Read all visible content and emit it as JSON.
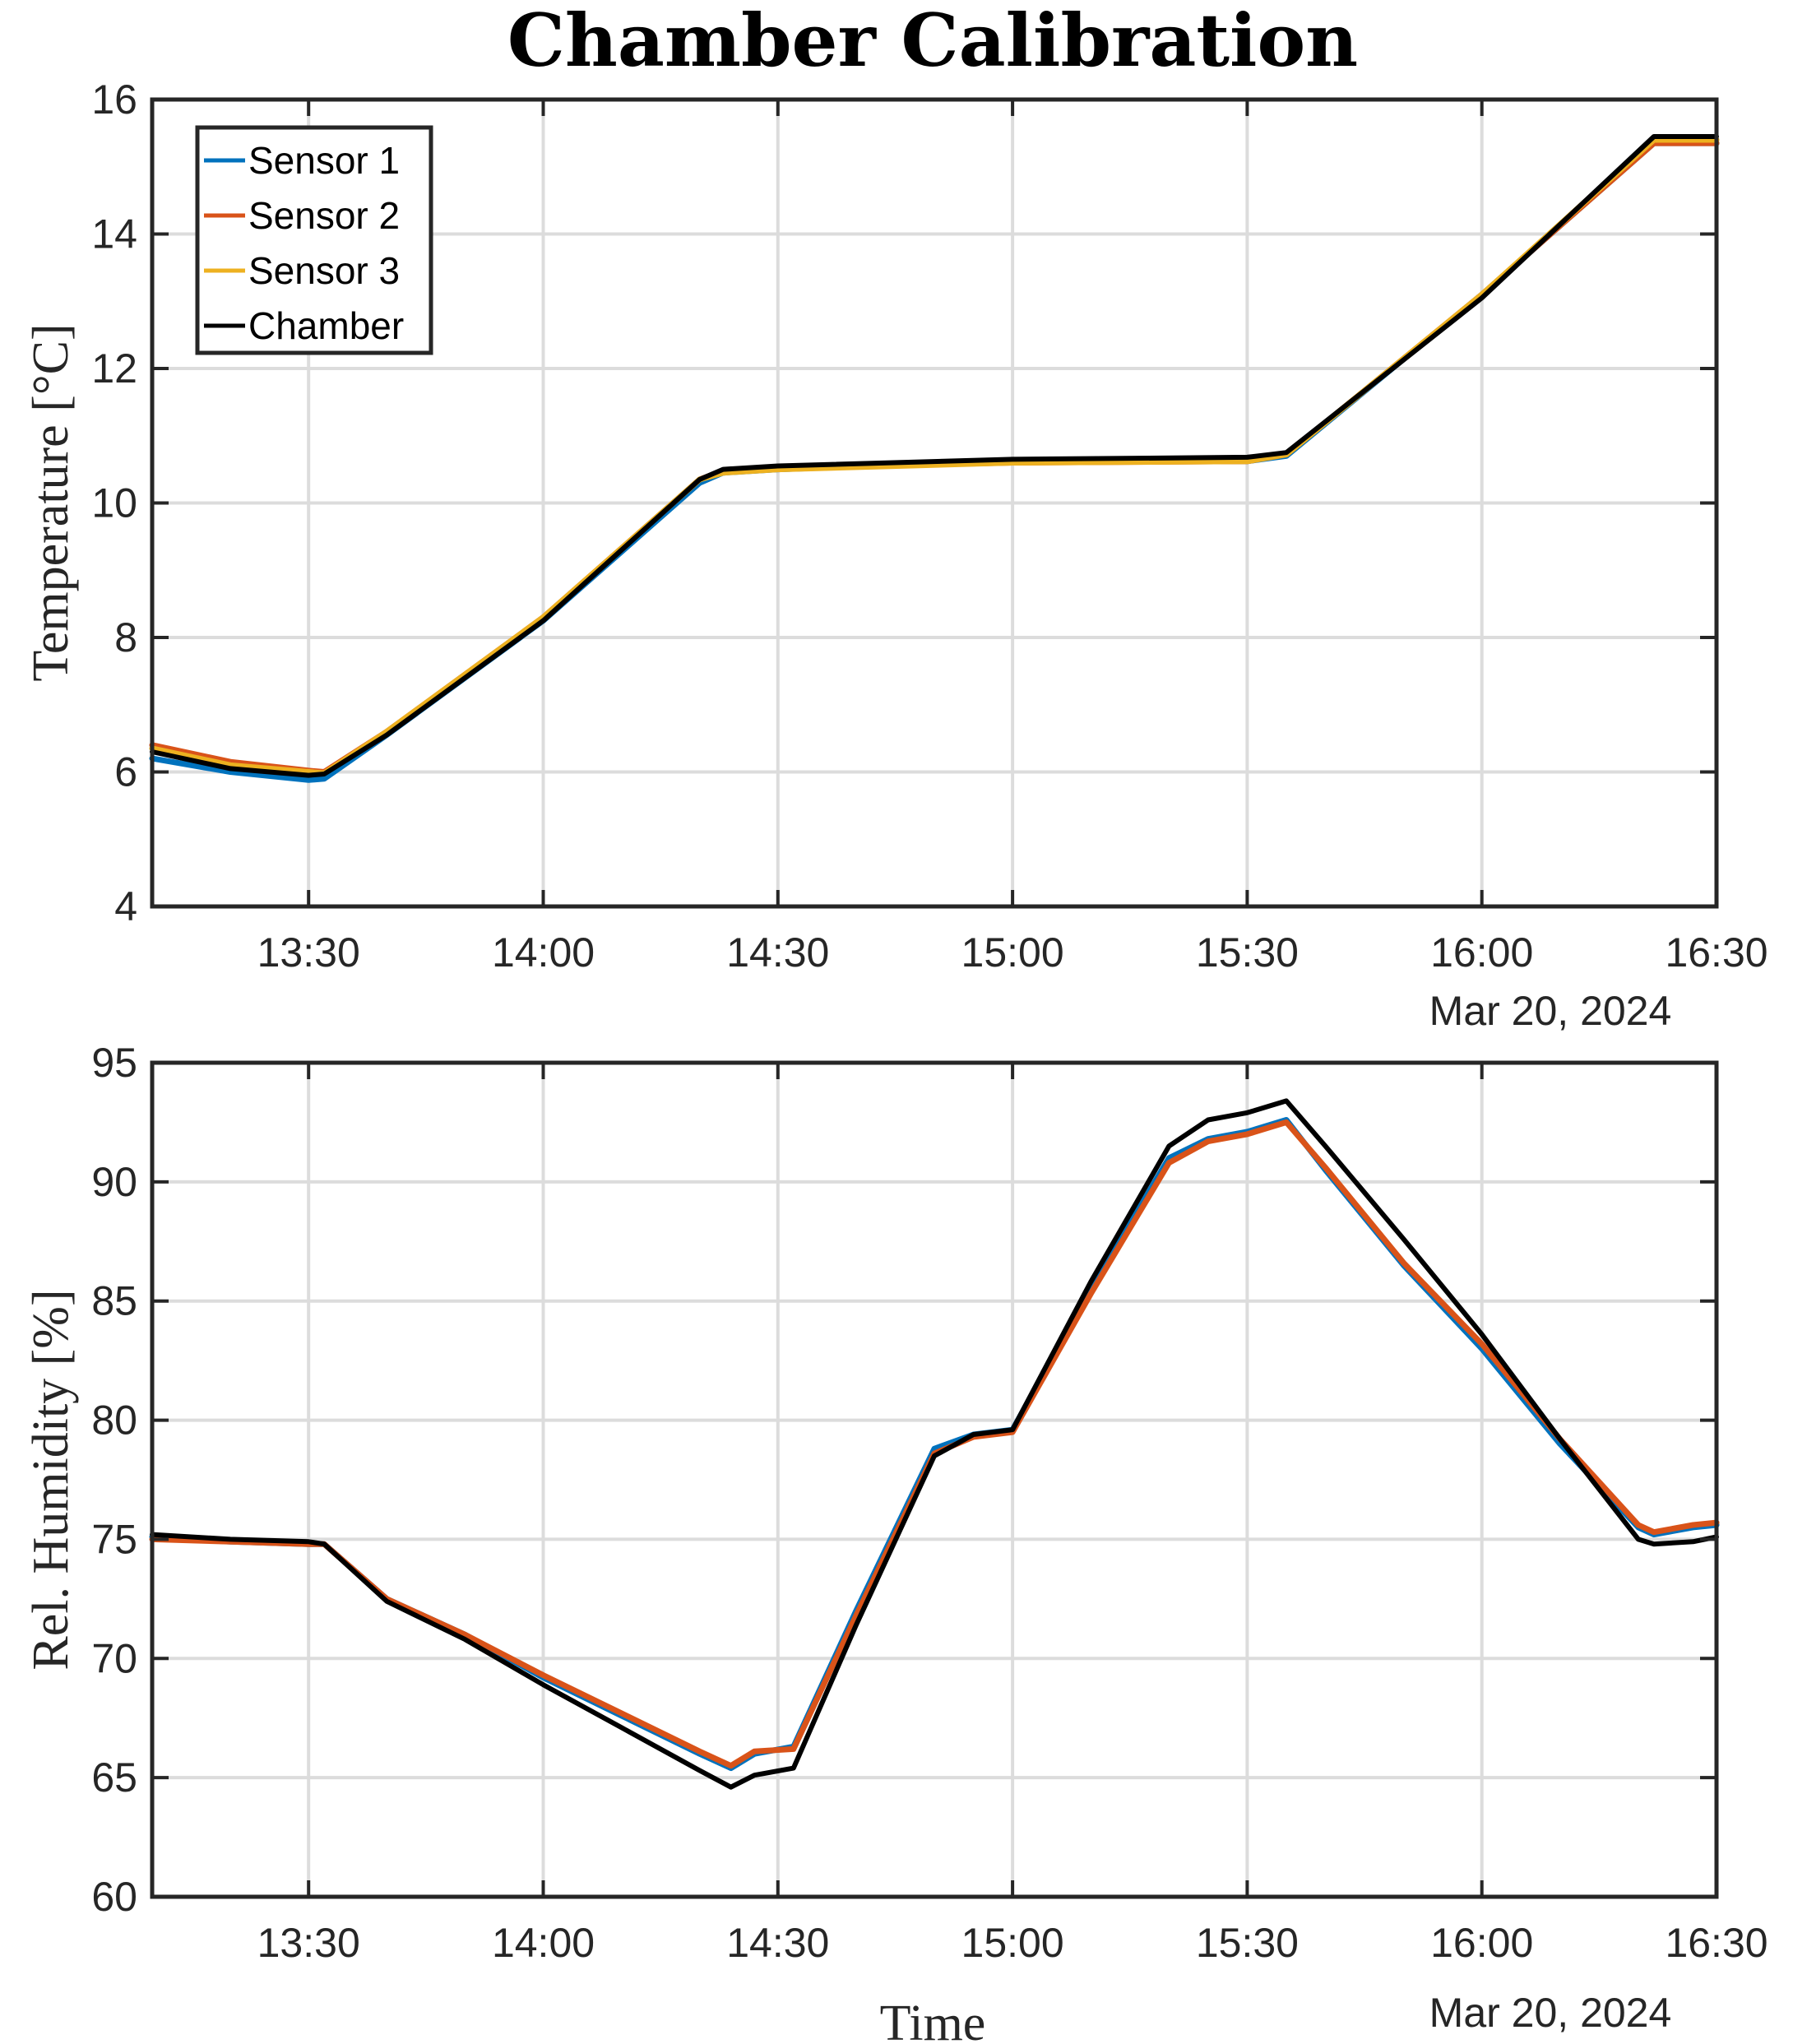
{
  "figure": {
    "title": "Chamber Calibration",
    "colors": {
      "sensor1": "#0072BD",
      "sensor2": "#D95319",
      "sensor3": "#EDB120",
      "chamber": "#000000"
    }
  },
  "chart_data": [
    {
      "type": "line",
      "title": "Chamber Calibration",
      "xlabel": "",
      "ylabel": "Temperature [°C]",
      "date_label": "Mar 20, 2024",
      "xlim": [
        "13:10",
        "16:30"
      ],
      "ylim": [
        4,
        16
      ],
      "y_ticks": [
        "4",
        "6",
        "8",
        "10",
        "12",
        "14",
        "16"
      ],
      "x_ticks": [
        "13:30",
        "14:00",
        "14:30",
        "15:00",
        "15:30",
        "16:00",
        "16:30"
      ],
      "grid": true,
      "legend": {
        "placement": "top-left",
        "entries": [
          "Sensor 1",
          "Sensor 2",
          "Sensor 3",
          "Chamber"
        ]
      },
      "series": [
        {
          "name": "Sensor 1",
          "color": "#0072BD",
          "x": [
            "13:10",
            "13:20",
            "13:30",
            "13:32",
            "13:40",
            "14:00",
            "14:20",
            "14:23",
            "14:30",
            "15:00",
            "15:30",
            "15:35",
            "16:00",
            "16:22",
            "16:30"
          ],
          "y": [
            6.2,
            6.0,
            5.88,
            5.9,
            6.55,
            8.25,
            10.3,
            10.45,
            10.5,
            10.62,
            10.62,
            10.7,
            13.1,
            15.35,
            15.35
          ]
        },
        {
          "name": "Sensor 2",
          "color": "#D95319",
          "x": [
            "13:10",
            "13:20",
            "13:30",
            "13:32",
            "13:40",
            "14:00",
            "14:20",
            "14:23",
            "14:30",
            "15:00",
            "15:30",
            "15:35",
            "16:00",
            "16:22",
            "16:30"
          ],
          "y": [
            6.4,
            6.15,
            6.02,
            6.0,
            6.6,
            8.3,
            10.35,
            10.48,
            10.52,
            10.6,
            10.62,
            10.72,
            13.1,
            15.35,
            15.35
          ]
        },
        {
          "name": "Sensor 3",
          "color": "#EDB120",
          "x": [
            "13:10",
            "13:20",
            "13:30",
            "13:32",
            "13:40",
            "14:00",
            "14:20",
            "14:23",
            "14:30",
            "15:00",
            "15:30",
            "15:35",
            "16:00",
            "16:22",
            "16:30"
          ],
          "y": [
            6.35,
            6.1,
            6.0,
            5.98,
            6.6,
            8.3,
            10.35,
            10.45,
            10.5,
            10.6,
            10.62,
            10.72,
            13.1,
            15.4,
            15.4
          ]
        },
        {
          "name": "Chamber",
          "color": "#000000",
          "x": [
            "13:10",
            "13:20",
            "13:30",
            "13:32",
            "13:40",
            "14:00",
            "14:20",
            "14:23",
            "14:30",
            "15:00",
            "15:30",
            "15:35",
            "16:00",
            "16:22",
            "16:30"
          ],
          "y": [
            6.3,
            6.05,
            5.95,
            5.97,
            6.55,
            8.25,
            10.35,
            10.5,
            10.55,
            10.65,
            10.68,
            10.75,
            13.05,
            15.45,
            15.45
          ]
        }
      ]
    },
    {
      "type": "line",
      "xlabel": "Time",
      "ylabel": "Rel. Humidity [%]",
      "date_label": "Mar 20, 2024",
      "xlim": [
        "13:10",
        "16:30"
      ],
      "ylim": [
        60,
        95
      ],
      "y_ticks": [
        "60",
        "65",
        "70",
        "75",
        "80",
        "85",
        "90",
        "95"
      ],
      "x_ticks": [
        "13:30",
        "14:00",
        "14:30",
        "15:00",
        "15:30",
        "16:00",
        "16:30"
      ],
      "grid": true,
      "series": [
        {
          "name": "Sensor 1",
          "color": "#0072BD",
          "x": [
            "13:10",
            "13:20",
            "13:30",
            "13:32",
            "13:40",
            "13:50",
            "14:00",
            "14:10",
            "14:20",
            "14:24",
            "14:27",
            "14:32",
            "14:40",
            "14:50",
            "14:55",
            "15:00",
            "15:10",
            "15:20",
            "15:25",
            "15:30",
            "15:35",
            "15:40",
            "15:50",
            "16:00",
            "16:10",
            "16:20",
            "16:22",
            "16:27",
            "16:30"
          ],
          "y": [
            75.1,
            74.9,
            74.8,
            74.8,
            72.5,
            71.0,
            69.2,
            67.6,
            66.0,
            65.4,
            66.0,
            66.3,
            72.0,
            78.8,
            79.4,
            79.6,
            85.5,
            91.0,
            91.8,
            92.1,
            92.6,
            90.5,
            86.5,
            83.0,
            79.0,
            75.5,
            75.2,
            75.5,
            75.6
          ]
        },
        {
          "name": "Sensor 2",
          "color": "#D95319",
          "x": [
            "13:10",
            "13:20",
            "13:30",
            "13:32",
            "13:40",
            "13:50",
            "14:00",
            "14:10",
            "14:20",
            "14:24",
            "14:27",
            "14:32",
            "14:40",
            "14:50",
            "14:55",
            "15:00",
            "15:10",
            "15:20",
            "15:25",
            "15:30",
            "15:35",
            "15:40",
            "15:50",
            "16:00",
            "16:10",
            "16:20",
            "16:22",
            "16:27",
            "16:30"
          ],
          "y": [
            75.0,
            74.9,
            74.8,
            74.8,
            72.5,
            71.0,
            69.3,
            67.7,
            66.1,
            65.5,
            66.1,
            66.2,
            71.8,
            78.6,
            79.3,
            79.5,
            85.3,
            90.8,
            91.7,
            92.0,
            92.5,
            90.6,
            86.6,
            83.2,
            79.2,
            75.6,
            75.3,
            75.6,
            75.7
          ]
        },
        {
          "name": "Chamber",
          "color": "#000000",
          "x": [
            "13:10",
            "13:20",
            "13:30",
            "13:32",
            "13:40",
            "13:50",
            "14:00",
            "14:10",
            "14:20",
            "14:24",
            "14:27",
            "14:32",
            "14:40",
            "14:50",
            "14:55",
            "15:00",
            "15:10",
            "15:20",
            "15:25",
            "15:30",
            "15:35",
            "15:40",
            "15:50",
            "16:00",
            "16:10",
            "16:20",
            "16:22",
            "16:27",
            "16:30"
          ],
          "y": [
            75.2,
            75.0,
            74.9,
            74.8,
            72.4,
            70.8,
            68.9,
            67.1,
            65.3,
            64.6,
            65.1,
            65.4,
            71.4,
            78.5,
            79.4,
            79.6,
            85.8,
            91.5,
            92.6,
            92.9,
            93.4,
            91.5,
            87.6,
            83.6,
            79.2,
            75.0,
            74.8,
            74.9,
            75.1
          ]
        }
      ]
    }
  ]
}
